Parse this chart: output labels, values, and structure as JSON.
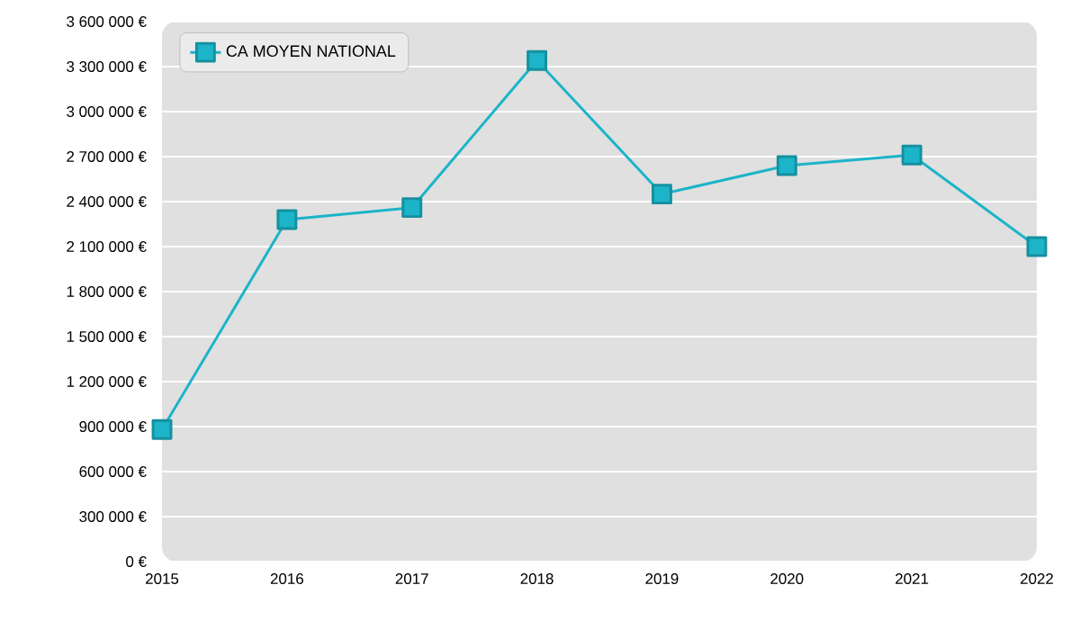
{
  "chart_data": {
    "type": "line",
    "x": [
      2015,
      2016,
      2017,
      2018,
      2019,
      2020,
      2021,
      2022
    ],
    "series": [
      {
        "name": "CA MOYEN NATIONAL",
        "color": "#1cb4c8",
        "values": [
          880000,
          2280000,
          2360000,
          3340000,
          2450000,
          2640000,
          2710000,
          2100000
        ]
      }
    ],
    "xlim": [
      2015,
      2022
    ],
    "xticks": [
      2015,
      2016,
      2017,
      2018,
      2019,
      2020,
      2021,
      2022
    ],
    "ylim": [
      0,
      3600000
    ],
    "yticks": [
      {
        "value": 0,
        "label": "0 €"
      },
      {
        "value": 300000,
        "label": "300 000 €"
      },
      {
        "value": 600000,
        "label": "600 000 €"
      },
      {
        "value": 900000,
        "label": "900 000 €"
      },
      {
        "value": 1200000,
        "label": "1 200 000 €"
      },
      {
        "value": 1500000,
        "label": "1 500 000 €"
      },
      {
        "value": 1800000,
        "label": "1 800 000 €"
      },
      {
        "value": 2100000,
        "label": "2 100 000 €"
      },
      {
        "value": 2400000,
        "label": "2 400 000 €"
      },
      {
        "value": 2700000,
        "label": "2 700 000 €"
      },
      {
        "value": 3000000,
        "label": "3 000 000 €"
      },
      {
        "value": 3300000,
        "label": "3 300 000 €"
      },
      {
        "value": 3600000,
        "label": "3 600 000 €"
      }
    ],
    "grid": "y",
    "legend": "top left",
    "marker": "square",
    "line_style": "solid"
  }
}
